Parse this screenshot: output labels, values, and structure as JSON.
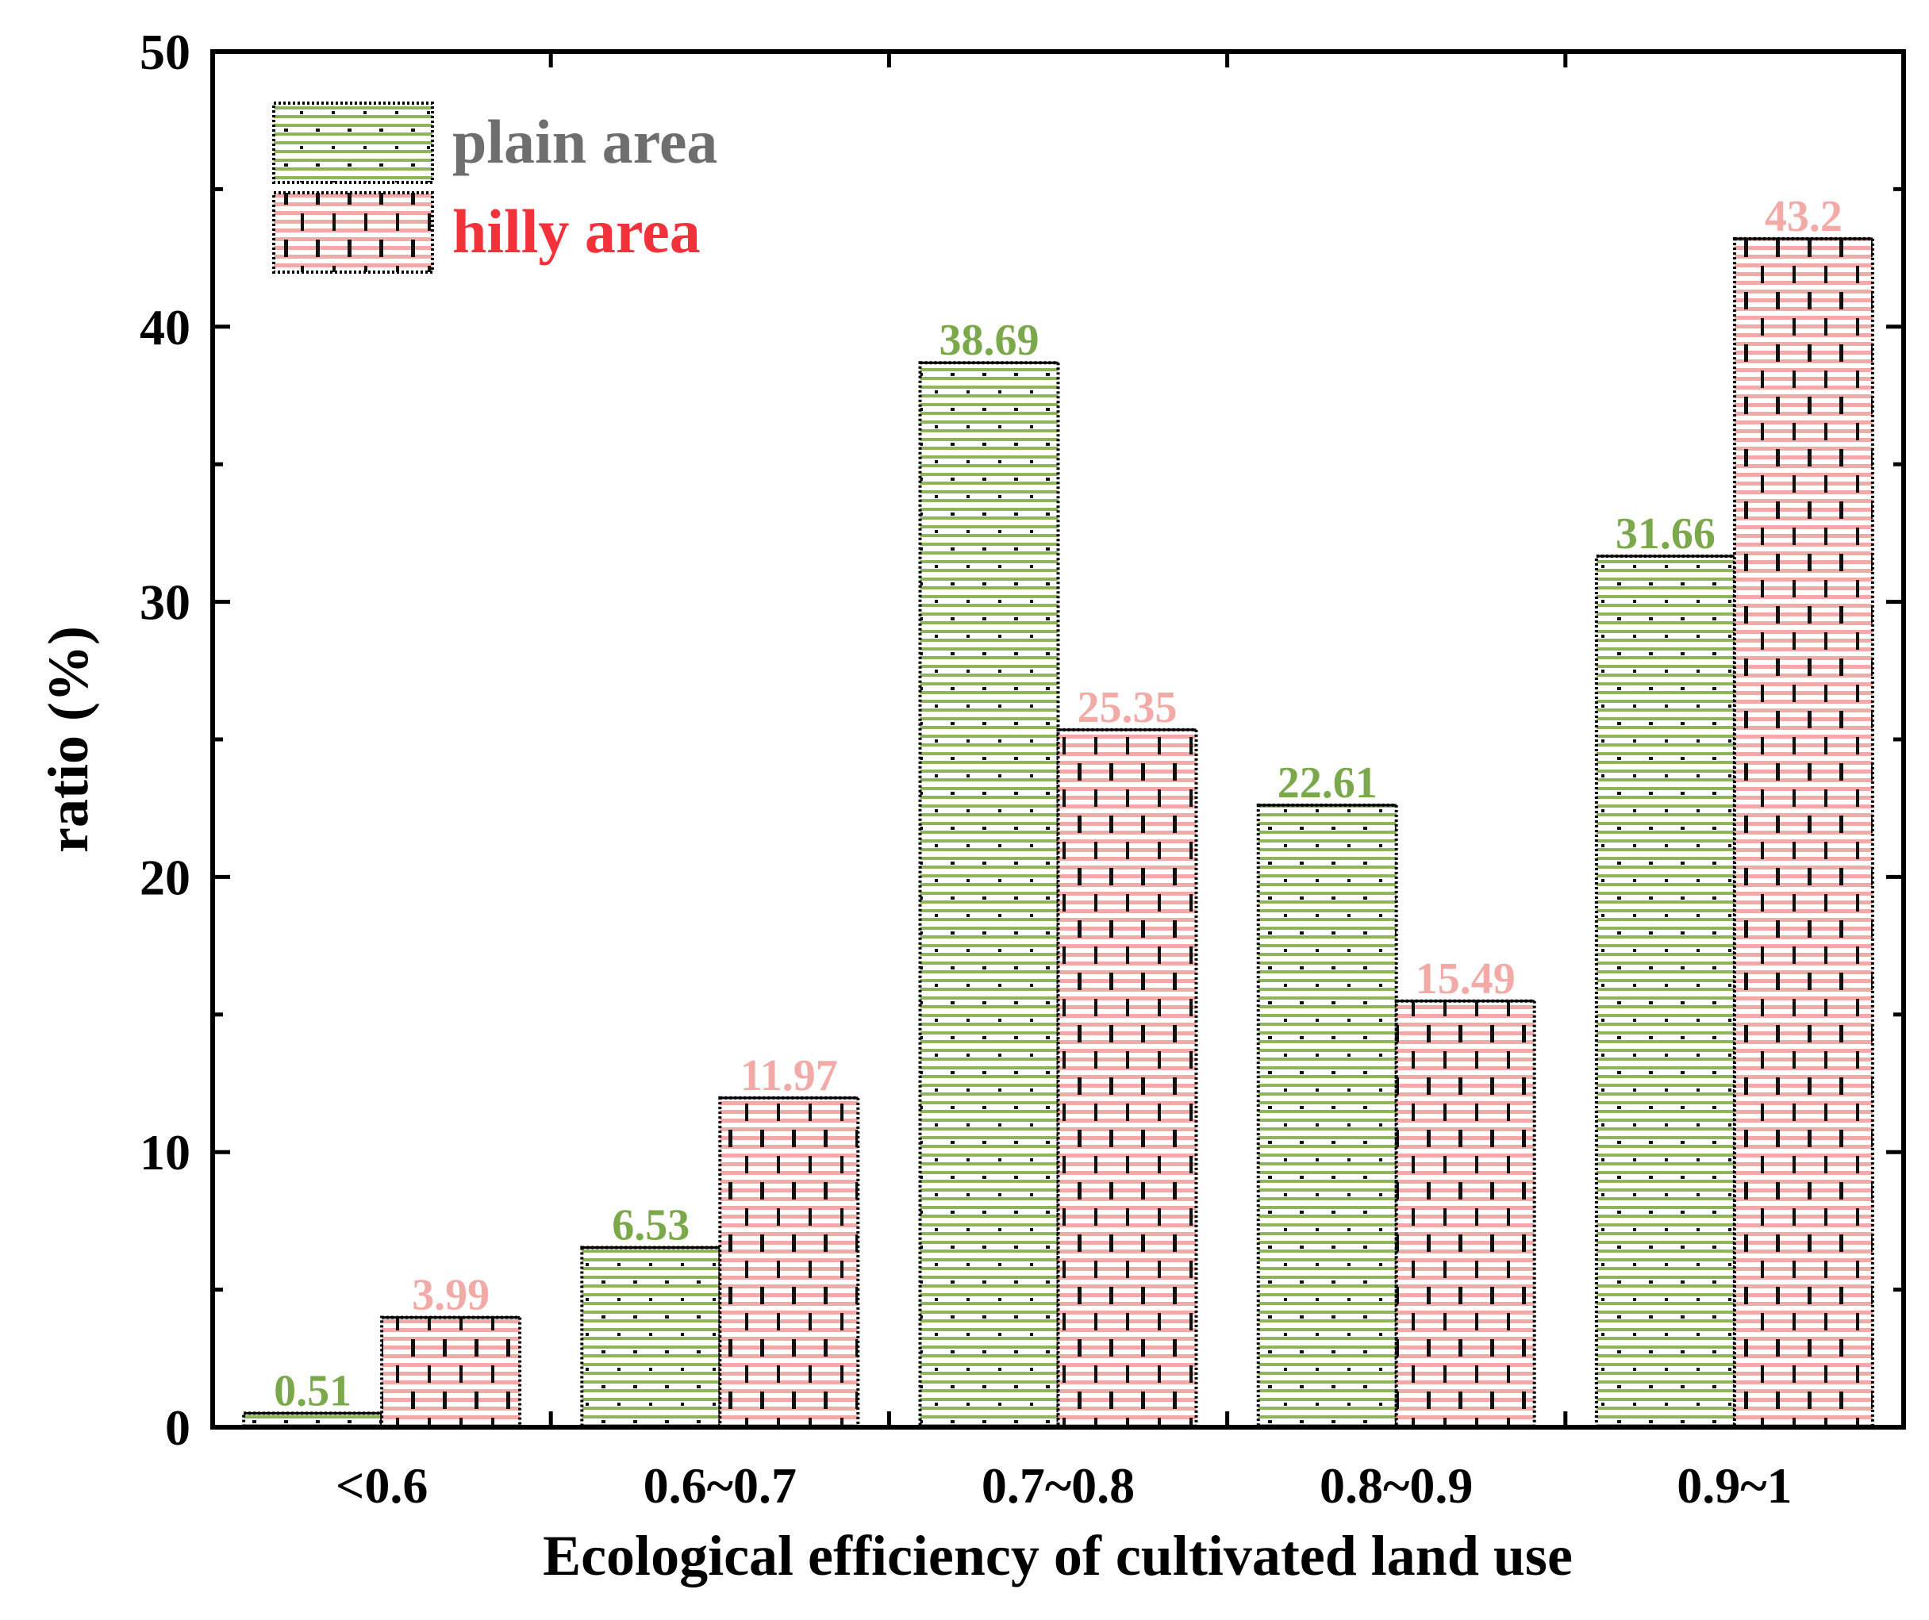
{
  "chart_data": {
    "type": "bar",
    "title": "",
    "xlabel": "Ecological efficiency of cultivated land use",
    "ylabel": "ratio (%)",
    "ylim": [
      0,
      50
    ],
    "yticks": [
      0,
      10,
      20,
      30,
      40,
      50
    ],
    "yticks_text": [
      "0",
      "10",
      "20",
      "30",
      "40",
      "50"
    ],
    "grid": false,
    "legend_position": "top-left",
    "categories": [
      "<0.6",
      "0.6~0.7",
      "0.7~0.8",
      "0.8~0.9",
      "0.9~1"
    ],
    "series": [
      {
        "name": "plain area",
        "color": "#8FB55A",
        "label_color": "#7BA84A",
        "legend_text_color": "#6E6E6E",
        "values": [
          0.51,
          6.53,
          38.69,
          22.61,
          31.66
        ],
        "value_labels": [
          "0.51",
          "6.53",
          "38.69",
          "22.61",
          "31.66"
        ]
      },
      {
        "name": "hilly area",
        "color": "#F2AAA6",
        "label_color": "#F2AAA6",
        "legend_text_color": "#F2323A",
        "values": [
          3.99,
          11.97,
          25.35,
          15.49,
          43.2
        ],
        "value_labels": [
          "3.99",
          "11.97",
          "25.35",
          "15.49",
          "43.2"
        ]
      }
    ]
  }
}
